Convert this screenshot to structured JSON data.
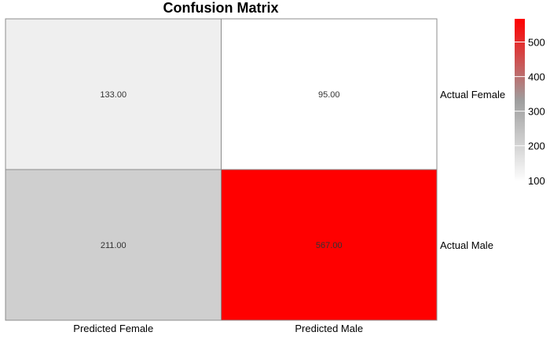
{
  "chart_data": {
    "type": "heatmap",
    "title": "Confusion Matrix",
    "columns": [
      "Predicted Female",
      "Predicted Male"
    ],
    "rows": [
      "Actual Female",
      "Actual Male"
    ],
    "values": [
      [
        133,
        95
      ],
      [
        211,
        567
      ]
    ],
    "cell_labels": [
      [
        "133.00",
        "95.00"
      ],
      [
        "211.00",
        "567.00"
      ]
    ],
    "colorbar": {
      "min": 95,
      "max": 567,
      "ticks": [
        100,
        200,
        300,
        400,
        500
      ],
      "colors": [
        "#ffffff",
        "#9e9e9e",
        "#ff0000"
      ]
    },
    "legend_position": "right"
  }
}
